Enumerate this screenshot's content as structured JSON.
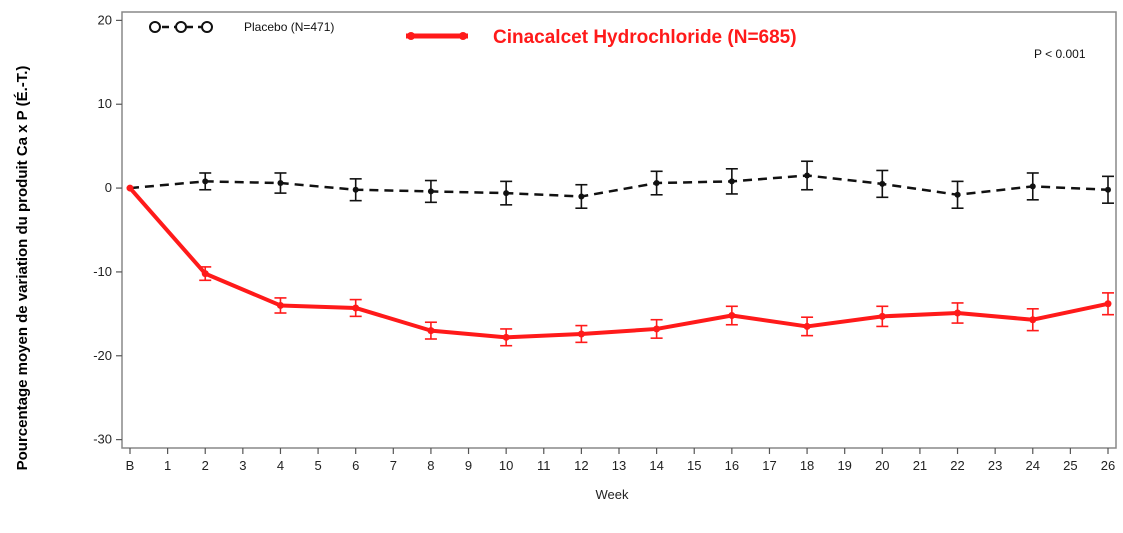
{
  "chart_data": {
    "type": "line",
    "title": "",
    "xlabel": "Week",
    "ylabel": "Pourcentage moyen de variation  du produit Ca x P (É.-T.)",
    "x_ticks": [
      "B",
      "1",
      "2",
      "3",
      "4",
      "5",
      "6",
      "7",
      "8",
      "9",
      "10",
      "11",
      "12",
      "13",
      "14",
      "15",
      "16",
      "17",
      "18",
      "19",
      "20",
      "21",
      "22",
      "23",
      "24",
      "25",
      "26"
    ],
    "y_ticks": [
      "20",
      "10",
      "0",
      "-10",
      "-20",
      "-30"
    ],
    "ylim": [
      -31,
      21
    ],
    "xlim": [
      0,
      26
    ],
    "legend_position": "top-left",
    "annotation": "P < 0.001",
    "grid": false,
    "series": [
      {
        "name": "Placebo (N=471)",
        "color": "#111111",
        "style": "dashed",
        "x": [
          0,
          2,
          4,
          6,
          8,
          10,
          12,
          14,
          16,
          18,
          20,
          22,
          24,
          26
        ],
        "values": [
          0,
          0.8,
          0.6,
          -0.2,
          -0.4,
          -0.6,
          -1.0,
          0.6,
          0.8,
          1.5,
          0.5,
          -0.8,
          0.2,
          -0.2
        ],
        "error": [
          0,
          1.0,
          1.2,
          1.3,
          1.3,
          1.4,
          1.4,
          1.4,
          1.5,
          1.7,
          1.6,
          1.6,
          1.6,
          1.6
        ]
      },
      {
        "name": "Cinacalcet Hydrochloride (N=685)",
        "color": "#ff1a1a",
        "style": "solid",
        "x": [
          0,
          2,
          4,
          6,
          8,
          10,
          12,
          14,
          16,
          18,
          20,
          22,
          24,
          26
        ],
        "values": [
          0,
          -10.2,
          -14.0,
          -14.3,
          -17.0,
          -17.8,
          -17.4,
          -16.8,
          -15.2,
          -16.5,
          -15.3,
          -14.9,
          -15.7,
          -13.8
        ],
        "error": [
          0,
          0.8,
          0.9,
          1.0,
          1.0,
          1.0,
          1.0,
          1.1,
          1.1,
          1.1,
          1.2,
          1.2,
          1.3,
          1.3
        ]
      }
    ]
  }
}
